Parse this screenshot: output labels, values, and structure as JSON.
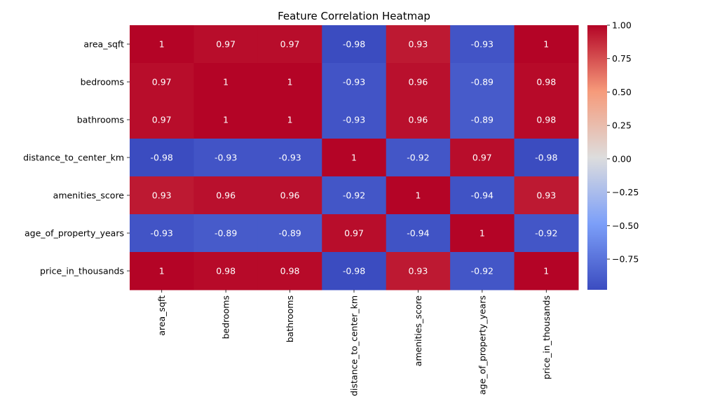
{
  "chart_data": {
    "type": "heatmap",
    "title": "Feature Correlation Heatmap",
    "colormap": "coolwarm",
    "x_categories": [
      "area_sqft",
      "bedrooms",
      "bathrooms",
      "distance_to_center_km",
      "amenities_score",
      "age_of_property_years",
      "price_in_thousands"
    ],
    "y_categories": [
      "area_sqft",
      "bedrooms",
      "bathrooms",
      "distance_to_center_km",
      "amenities_score",
      "age_of_property_years",
      "price_in_thousands"
    ],
    "values": [
      [
        1,
        0.97,
        0.97,
        -0.98,
        0.93,
        -0.93,
        1
      ],
      [
        0.97,
        1,
        1,
        -0.93,
        0.96,
        -0.89,
        0.98
      ],
      [
        0.97,
        1,
        1,
        -0.93,
        0.96,
        -0.89,
        0.98
      ],
      [
        -0.98,
        -0.93,
        -0.93,
        1,
        -0.92,
        0.97,
        -0.98
      ],
      [
        0.93,
        0.96,
        0.96,
        -0.92,
        1,
        -0.94,
        0.93
      ],
      [
        -0.93,
        -0.89,
        -0.89,
        0.97,
        -0.94,
        1,
        -0.92
      ],
      [
        1,
        0.98,
        0.98,
        -0.98,
        0.93,
        -0.92,
        1
      ]
    ],
    "annotations": [
      [
        "1",
        "0.97",
        "0.97",
        "-0.98",
        "0.93",
        "-0.93",
        "1"
      ],
      [
        "0.97",
        "1",
        "1",
        "-0.93",
        "0.96",
        "-0.89",
        "0.98"
      ],
      [
        "0.97",
        "1",
        "1",
        "-0.93",
        "0.96",
        "-0.89",
        "0.98"
      ],
      [
        "-0.98",
        "-0.93",
        "-0.93",
        "1",
        "-0.92",
        "0.97",
        "-0.98"
      ],
      [
        "0.93",
        "0.96",
        "0.96",
        "-0.92",
        "1",
        "-0.94",
        "0.93"
      ],
      [
        "-0.93",
        "-0.89",
        "-0.89",
        "0.97",
        "-0.94",
        "1",
        "-0.92"
      ],
      [
        "1",
        "0.98",
        "0.98",
        "-0.98",
        "0.93",
        "-0.92",
        "1"
      ]
    ],
    "colorbar": {
      "range": [
        -0.98,
        1.0
      ],
      "ticks": [
        1.0,
        0.75,
        0.5,
        0.25,
        0.0,
        -0.25,
        -0.5,
        -0.75
      ],
      "tick_labels": [
        "1.00",
        "0.75",
        "0.50",
        "0.25",
        "0.00",
        "−0.25",
        "−0.50",
        "−0.75"
      ]
    }
  }
}
